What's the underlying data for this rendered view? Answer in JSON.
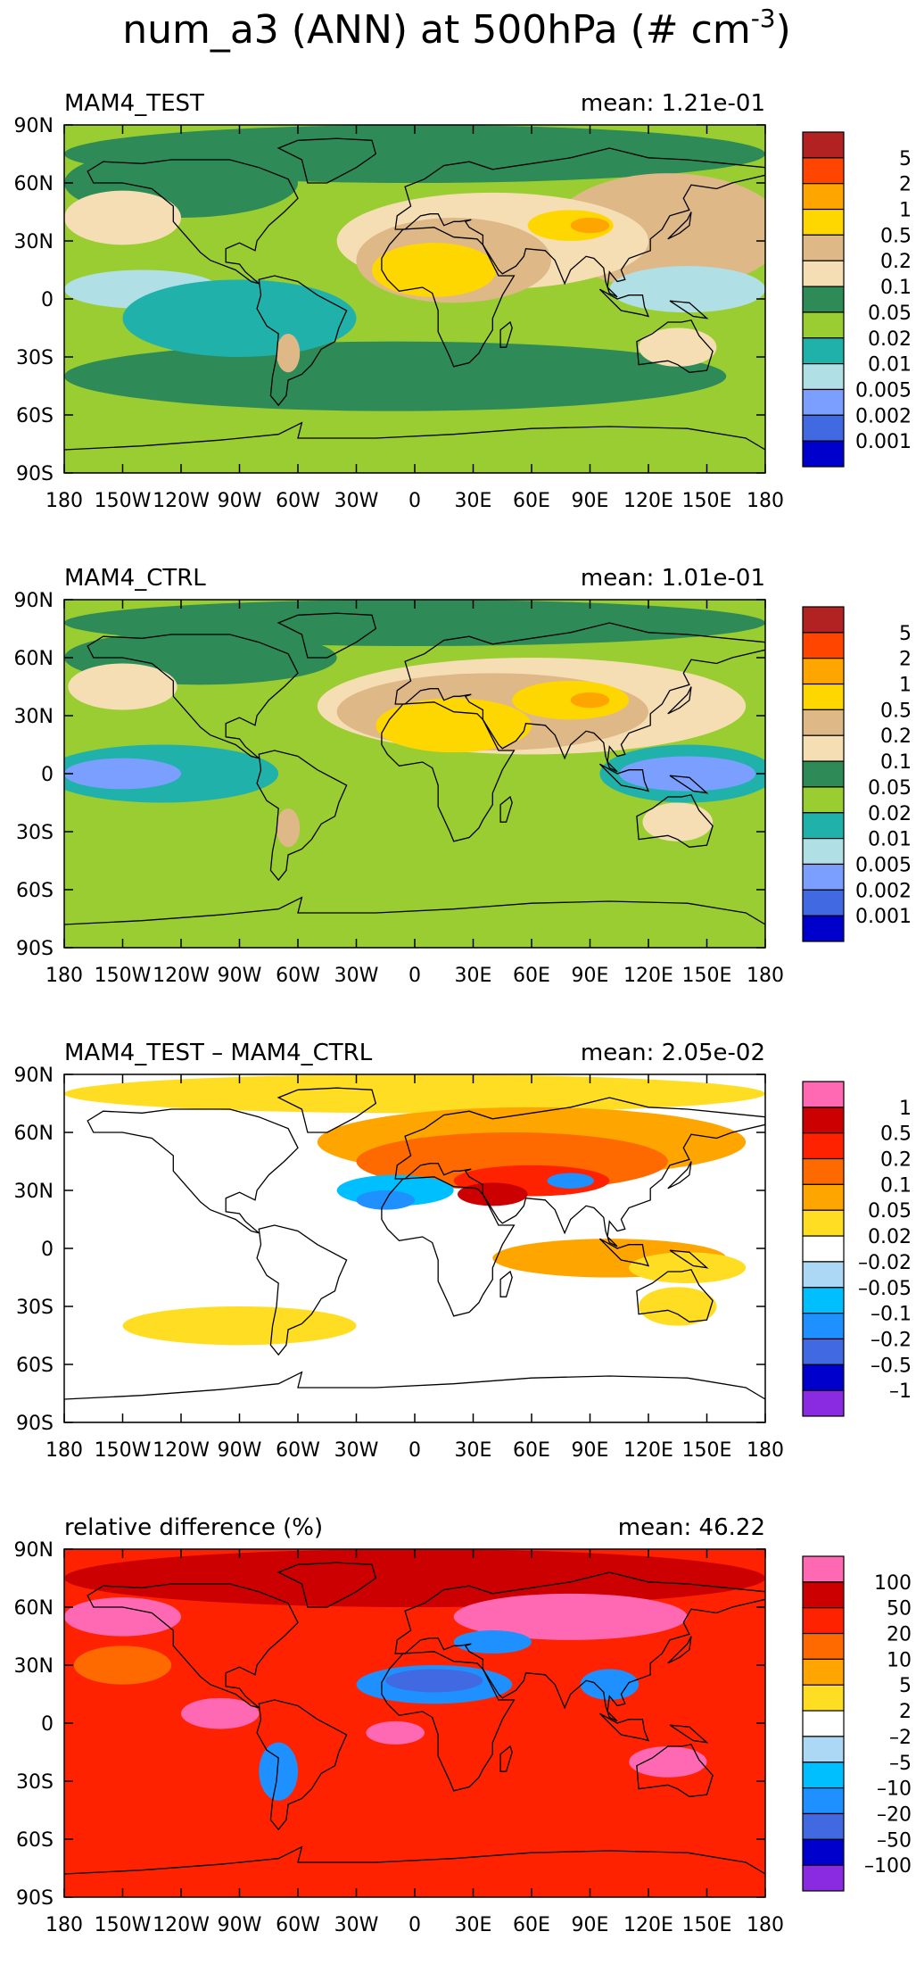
{
  "title": "num_a3 (ANN) at 500hPa (# cm⁻³)",
  "title_main": "num_a3 (ANN) at 500hPa (# cm",
  "title_sup": "-3",
  "title_end": ")",
  "chart_data": [
    {
      "type": "heatmap",
      "title": "MAM4_TEST",
      "mean_label": "mean:  1.21e-01",
      "xticks": [
        "180",
        "150W",
        "120W",
        "90W",
        "60W",
        "30W",
        "0",
        "30E",
        "60E",
        "90E",
        "120E",
        "150E",
        "180"
      ],
      "yticks": [
        "90N",
        "60N",
        "30N",
        "0",
        "30S",
        "60S",
        "90S"
      ],
      "xlim": [
        -180,
        180
      ],
      "ylim": [
        -90,
        90
      ],
      "colorbar_labels": [
        "5",
        "2",
        "1",
        "0.5",
        "0.2",
        "0.1",
        "0.05",
        "0.02",
        "0.01",
        "0.005",
        "0.002",
        "0.001"
      ],
      "colorbar_colors": [
        "#b22222",
        "#ff4500",
        "#ffa500",
        "#ffd700",
        "#deb887",
        "#f5deb3",
        "#2e8b57",
        "#9acd32",
        "#20b2aa",
        "#b0e0e6",
        "#7b9fff",
        "#4169e1",
        "#0000cd"
      ]
    },
    {
      "type": "heatmap",
      "title": "MAM4_CTRL",
      "mean_label": "mean:  1.01e-01",
      "xticks": [
        "180",
        "150W",
        "120W",
        "90W",
        "60W",
        "30W",
        "0",
        "30E",
        "60E",
        "90E",
        "120E",
        "150E",
        "180"
      ],
      "yticks": [
        "90N",
        "60N",
        "30N",
        "0",
        "30S",
        "60S",
        "90S"
      ],
      "xlim": [
        -180,
        180
      ],
      "ylim": [
        -90,
        90
      ],
      "colorbar_labels": [
        "5",
        "2",
        "1",
        "0.5",
        "0.2",
        "0.1",
        "0.05",
        "0.02",
        "0.01",
        "0.005",
        "0.002",
        "0.001"
      ],
      "colorbar_colors": [
        "#b22222",
        "#ff4500",
        "#ffa500",
        "#ffd700",
        "#deb887",
        "#f5deb3",
        "#2e8b57",
        "#9acd32",
        "#20b2aa",
        "#b0e0e6",
        "#7b9fff",
        "#4169e1",
        "#0000cd"
      ]
    },
    {
      "type": "heatmap",
      "title": "MAM4_TEST – MAM4_CTRL",
      "mean_label": "mean:  2.05e-02",
      "xticks": [
        "180",
        "150W",
        "120W",
        "90W",
        "60W",
        "30W",
        "0",
        "30E",
        "60E",
        "90E",
        "120E",
        "150E",
        "180"
      ],
      "yticks": [
        "90N",
        "60N",
        "30N",
        "0",
        "30S",
        "60S",
        "90S"
      ],
      "xlim": [
        -180,
        180
      ],
      "ylim": [
        -90,
        90
      ],
      "colorbar_labels": [
        "1",
        "0.5",
        "0.2",
        "0.1",
        "0.05",
        "0.02",
        "–0.02",
        "–0.05",
        "–0.1",
        "–0.2",
        "–0.5",
        "–1"
      ],
      "colorbar_colors": [
        "#ff69b4",
        "#cc0000",
        "#ff2200",
        "#ff6a00",
        "#ffa500",
        "#ffdd22",
        "#ffffff",
        "#add8f5",
        "#00bfff",
        "#1e90ff",
        "#4169e1",
        "#0000cd",
        "#8a2be2"
      ]
    },
    {
      "type": "heatmap",
      "title": "relative difference (%)",
      "mean_label": "mean:  46.22",
      "xticks": [
        "180",
        "150W",
        "120W",
        "90W",
        "60W",
        "30W",
        "0",
        "30E",
        "60E",
        "90E",
        "120E",
        "150E",
        "180"
      ],
      "yticks": [
        "90N",
        "60N",
        "30N",
        "0",
        "30S",
        "60S",
        "90S"
      ],
      "xlim": [
        -180,
        180
      ],
      "ylim": [
        -90,
        90
      ],
      "colorbar_labels": [
        "100",
        "50",
        "20",
        "10",
        "5",
        "2",
        "–2",
        "–5",
        "–10",
        "–20",
        "–50",
        "–100"
      ],
      "colorbar_colors": [
        "#ff69b4",
        "#cc0000",
        "#ff2200",
        "#ff6a00",
        "#ffa500",
        "#ffdd22",
        "#ffffff",
        "#add8f5",
        "#00bfff",
        "#1e90ff",
        "#4169e1",
        "#0000cd",
        "#8a2be2"
      ]
    }
  ]
}
